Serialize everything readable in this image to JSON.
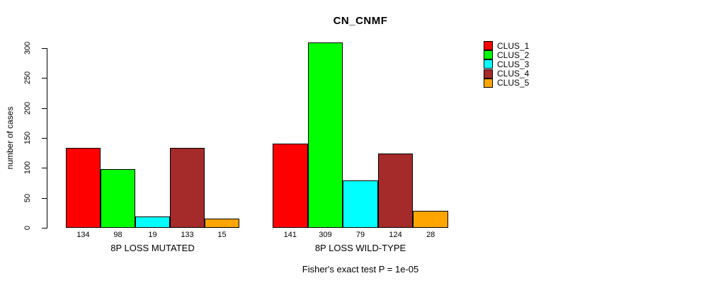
{
  "chart_data": {
    "type": "bar",
    "title": "CN_CNMF",
    "ylabel": "number of cases",
    "annotation": "Fisher's exact test P = 1e-05",
    "categories": [
      "8P LOSS MUTATED",
      "8P LOSS WILD-TYPE"
    ],
    "series": [
      {
        "name": "CLUS_1",
        "color": "#FF0000",
        "values": [
          134,
          141
        ]
      },
      {
        "name": "CLUS_2",
        "color": "#00FF00",
        "values": [
          98,
          309
        ]
      },
      {
        "name": "CLUS_3",
        "color": "#00FFFF",
        "values": [
          19,
          79
        ]
      },
      {
        "name": "CLUS_4",
        "color": "#A52A2A",
        "values": [
          133,
          124
        ]
      },
      {
        "name": "CLUS_5",
        "color": "#FFA500",
        "values": [
          15,
          28
        ]
      }
    ],
    "bar_value_labels": [
      [
        "134",
        "98",
        "19",
        "133",
        "15"
      ],
      [
        "141",
        "309",
        "79",
        "124",
        "28"
      ]
    ],
    "ylim": [
      0,
      300
    ],
    "yticks": [
      0,
      50,
      100,
      150,
      200,
      250,
      300
    ],
    "legend_position": "right",
    "grid": false
  }
}
